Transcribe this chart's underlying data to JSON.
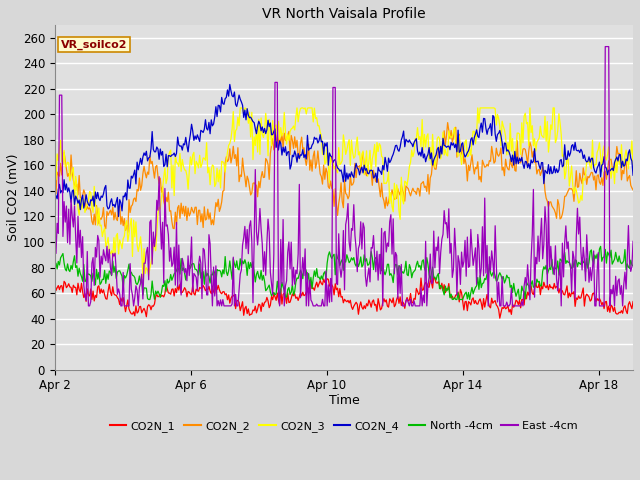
{
  "title": "VR North Vaisala Profile",
  "xlabel": "Time",
  "ylabel": "Soil CO2 (mV)",
  "ylim": [
    0,
    270
  ],
  "yticks": [
    0,
    20,
    40,
    60,
    80,
    100,
    120,
    140,
    160,
    180,
    200,
    220,
    240,
    260
  ],
  "xtick_labels": [
    "Apr 2",
    "Apr 6",
    "Apr 10",
    "Apr 14",
    "Apr 18"
  ],
  "xtick_positions": [
    0,
    4,
    8,
    12,
    16
  ],
  "xlim": [
    0,
    17
  ],
  "series_colors": {
    "CO2N_1": "#ff0000",
    "CO2N_2": "#ff8c00",
    "CO2N_3": "#ffff00",
    "CO2N_4": "#0000cc",
    "North_4cm": "#00bb00",
    "East_4cm": "#9900bb"
  },
  "legend_labels": [
    "CO2N_1",
    "CO2N_2",
    "CO2N_3",
    "CO2N_4",
    "North -4cm",
    "East -4cm"
  ],
  "annotation_text": "VR_soilco2",
  "fig_facecolor": "#d8d8d8",
  "ax_facecolor": "#e0e0e0",
  "grid_color": "#ffffff",
  "n_points": 500,
  "x_start": 0,
  "x_end": 17
}
